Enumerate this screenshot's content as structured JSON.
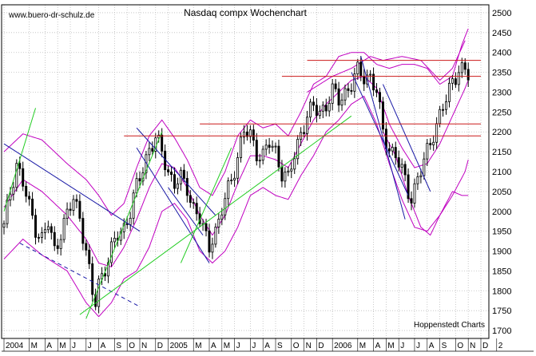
{
  "chart_data": {
    "type": "candlestick",
    "title": "Nasdaq compx Wochenchart",
    "watermark": "www.buero-dr-schulz.de",
    "source": "Hoppenstedt Charts",
    "grid": true,
    "y_axis": {
      "position": "right",
      "ylim": [
        1680,
        2520
      ],
      "ticks": [
        1700,
        1750,
        1800,
        1850,
        1900,
        1950,
        2000,
        2050,
        2100,
        2150,
        2200,
        2250,
        2300,
        2350,
        2400,
        2450,
        2500
      ]
    },
    "x_axis": {
      "weeks_visible": 151,
      "tick_labels": [
        {
          "label": "2004",
          "week": 0
        },
        {
          "label": "M",
          "week": 8
        },
        {
          "label": "A",
          "week": 13
        },
        {
          "label": "M",
          "week": 17
        },
        {
          "label": "J",
          "week": 21
        },
        {
          "label": "J",
          "week": 26
        },
        {
          "label": "A",
          "week": 30
        },
        {
          "label": "S",
          "week": 35
        },
        {
          "label": "O",
          "week": 39
        },
        {
          "label": "N",
          "week": 43
        },
        {
          "label": "D",
          "week": 48
        },
        {
          "label": "2005",
          "week": 52
        },
        {
          "label": "M",
          "week": 60
        },
        {
          "label": "A",
          "week": 65
        },
        {
          "label": "M",
          "week": 69
        },
        {
          "label": "J",
          "week": 73
        },
        {
          "label": "J",
          "week": 78
        },
        {
          "label": "A",
          "week": 82
        },
        {
          "label": "S",
          "week": 86
        },
        {
          "label": "O",
          "week": 91
        },
        {
          "label": "N",
          "week": 95
        },
        {
          "label": "D",
          "week": 99
        },
        {
          "label": "2006",
          "week": 104
        },
        {
          "label": "M",
          "week": 112
        },
        {
          "label": "A",
          "week": 117
        },
        {
          "label": "M",
          "week": 121
        },
        {
          "label": "J",
          "week": 125
        },
        {
          "label": "J",
          "week": 130
        },
        {
          "label": "A",
          "week": 134
        },
        {
          "label": "S",
          "week": 138
        },
        {
          "label": "O",
          "week": 143
        },
        {
          "label": "N",
          "week": 147
        },
        {
          "label": "D",
          "week": 151
        },
        {
          "label": "2",
          "week": 156
        }
      ]
    },
    "close_anchors": [
      [
        0,
        1960
      ],
      [
        2,
        2050
      ],
      [
        4,
        2120
      ],
      [
        6,
        2070
      ],
      [
        8,
        2010
      ],
      [
        10,
        1960
      ],
      [
        12,
        1930
      ],
      [
        14,
        1970
      ],
      [
        16,
        1900
      ],
      [
        18,
        1950
      ],
      [
        20,
        1990
      ],
      [
        22,
        2030
      ],
      [
        24,
        1990
      ],
      [
        26,
        1900
      ],
      [
        28,
        1790
      ],
      [
        29,
        1770
      ],
      [
        30,
        1820
      ],
      [
        32,
        1860
      ],
      [
        34,
        1900
      ],
      [
        36,
        1940
      ],
      [
        38,
        1960
      ],
      [
        40,
        2000
      ],
      [
        42,
        2060
      ],
      [
        44,
        2110
      ],
      [
        46,
        2160
      ],
      [
        48,
        2180
      ],
      [
        50,
        2150
      ],
      [
        52,
        2100
      ],
      [
        54,
        2070
      ],
      [
        56,
        2080
      ],
      [
        58,
        2060
      ],
      [
        60,
        2010
      ],
      [
        62,
        1980
      ],
      [
        64,
        1930
      ],
      [
        65,
        1910
      ],
      [
        66,
        1940
      ],
      [
        68,
        1970
      ],
      [
        70,
        2030
      ],
      [
        72,
        2080
      ],
      [
        74,
        2140
      ],
      [
        76,
        2200
      ],
      [
        78,
        2190
      ],
      [
        80,
        2150
      ],
      [
        82,
        2140
      ],
      [
        84,
        2170
      ],
      [
        86,
        2150
      ],
      [
        88,
        2100
      ],
      [
        90,
        2080
      ],
      [
        92,
        2140
      ],
      [
        94,
        2200
      ],
      [
        96,
        2240
      ],
      [
        98,
        2260
      ],
      [
        100,
        2250
      ],
      [
        102,
        2270
      ],
      [
        104,
        2300
      ],
      [
        106,
        2280
      ],
      [
        108,
        2300
      ],
      [
        110,
        2320
      ],
      [
        112,
        2350
      ],
      [
        114,
        2340
      ],
      [
        116,
        2340
      ],
      [
        118,
        2300
      ],
      [
        120,
        2200
      ],
      [
        122,
        2160
      ],
      [
        124,
        2140
      ],
      [
        126,
        2100
      ],
      [
        128,
        2050
      ],
      [
        129,
        2040
      ],
      [
        130,
        2060
      ],
      [
        132,
        2100
      ],
      [
        134,
        2150
      ],
      [
        136,
        2200
      ],
      [
        138,
        2240
      ],
      [
        140,
        2280
      ],
      [
        142,
        2330
      ],
      [
        144,
        2360
      ],
      [
        146,
        2350
      ],
      [
        147,
        2340
      ]
    ],
    "bollinger": {
      "upper": [
        [
          0,
          2150
        ],
        [
          6,
          2195
        ],
        [
          12,
          2180
        ],
        [
          20,
          2120
        ],
        [
          26,
          2080
        ],
        [
          30,
          2040
        ],
        [
          34,
          1990
        ],
        [
          38,
          2020
        ],
        [
          42,
          2110
        ],
        [
          46,
          2190
        ],
        [
          50,
          2230
        ],
        [
          54,
          2185
        ],
        [
          58,
          2130
        ],
        [
          62,
          2060
        ],
        [
          66,
          2040
        ],
        [
          70,
          2100
        ],
        [
          74,
          2190
        ],
        [
          78,
          2230
        ],
        [
          82,
          2210
        ],
        [
          86,
          2220
        ],
        [
          90,
          2190
        ],
        [
          94,
          2250
        ],
        [
          98,
          2320
        ],
        [
          102,
          2340
        ],
        [
          106,
          2390
        ],
        [
          110,
          2400
        ],
        [
          114,
          2400
        ],
        [
          118,
          2370
        ],
        [
          122,
          2360
        ],
        [
          126,
          2370
        ],
        [
          130,
          2370
        ],
        [
          134,
          2360
        ],
        [
          138,
          2320
        ],
        [
          142,
          2340
        ],
        [
          145,
          2420
        ],
        [
          147,
          2460
        ]
      ],
      "lower": [
        [
          0,
          1880
        ],
        [
          6,
          1930
        ],
        [
          12,
          1890
        ],
        [
          20,
          1850
        ],
        [
          26,
          1770
        ],
        [
          30,
          1735
        ],
        [
          34,
          1770
        ],
        [
          38,
          1830
        ],
        [
          42,
          1850
        ],
        [
          46,
          1910
        ],
        [
          50,
          2000
        ],
        [
          54,
          2020
        ],
        [
          58,
          1980
        ],
        [
          62,
          1900
        ],
        [
          66,
          1870
        ],
        [
          70,
          1900
        ],
        [
          74,
          1960
        ],
        [
          78,
          2040
        ],
        [
          82,
          2060
        ],
        [
          86,
          2040
        ],
        [
          90,
          2030
        ],
        [
          94,
          2090
        ],
        [
          98,
          2140
        ],
        [
          102,
          2200
        ],
        [
          106,
          2230
        ],
        [
          110,
          2270
        ],
        [
          114,
          2290
        ],
        [
          118,
          2220
        ],
        [
          122,
          2120
        ],
        [
          126,
          2030
        ],
        [
          130,
          1960
        ],
        [
          134,
          1950
        ],
        [
          138,
          1990
        ],
        [
          142,
          2040
        ],
        [
          146,
          2100
        ],
        [
          147,
          2130
        ]
      ],
      "middle": [
        [
          0,
          2010
        ],
        [
          6,
          2080
        ],
        [
          12,
          2050
        ],
        [
          20,
          1990
        ],
        [
          26,
          1930
        ],
        [
          30,
          1870
        ],
        [
          34,
          1860
        ],
        [
          38,
          1910
        ],
        [
          42,
          1980
        ],
        [
          46,
          2060
        ],
        [
          50,
          2120
        ],
        [
          54,
          2110
        ],
        [
          58,
          2060
        ],
        [
          62,
          1990
        ],
        [
          66,
          1940
        ],
        [
          70,
          1990
        ],
        [
          74,
          2070
        ],
        [
          78,
          2140
        ],
        [
          82,
          2140
        ],
        [
          86,
          2130
        ],
        [
          90,
          2110
        ],
        [
          94,
          2170
        ],
        [
          98,
          2230
        ],
        [
          102,
          2270
        ],
        [
          106,
          2300
        ],
        [
          110,
          2330
        ],
        [
          114,
          2340
        ],
        [
          118,
          2310
        ],
        [
          122,
          2220
        ],
        [
          126,
          2160
        ],
        [
          130,
          2110
        ],
        [
          134,
          2120
        ],
        [
          138,
          2170
        ],
        [
          142,
          2240
        ],
        [
          146,
          2310
        ],
        [
          147,
          2330
        ]
      ],
      "outer_lower": [
        [
          120,
          2200
        ],
        [
          124,
          2140
        ],
        [
          128,
          2040
        ],
        [
          132,
          1960
        ],
        [
          135,
          1940
        ],
        [
          138,
          1990
        ],
        [
          142,
          2050
        ],
        [
          145,
          2040
        ],
        [
          147,
          2040
        ]
      ],
      "outer_upper": [
        [
          96,
          2300
        ],
        [
          104,
          2340
        ],
        [
          110,
          2360
        ],
        [
          116,
          2390
        ],
        [
          120,
          2380
        ],
        [
          126,
          2390
        ],
        [
          132,
          2380
        ],
        [
          138,
          2330
        ],
        [
          142,
          2360
        ],
        [
          146,
          2430
        ]
      ]
    },
    "trendlines": [
      {
        "color": "#1a1aa6",
        "style": "solid",
        "from": [
          0,
          2170
        ],
        "to": [
          43,
          1950
        ]
      },
      {
        "color": "#1a1aa6",
        "style": "dashed",
        "from": [
          5,
          1920
        ],
        "to": [
          43,
          1760
        ]
      },
      {
        "color": "#1a1aa6",
        "style": "solid",
        "from": [
          42,
          2210
        ],
        "to": [
          67,
          1990
        ]
      },
      {
        "color": "#1a1aa6",
        "style": "solid",
        "from": [
          42,
          2160
        ],
        "to": [
          65,
          1870
        ]
      },
      {
        "color": "#1a1aa6",
        "style": "solid",
        "from": [
          52,
          2060
        ],
        "to": [
          63,
          1940
        ]
      },
      {
        "color": "#1a1aa6",
        "style": "solid",
        "from": [
          113,
          2390
        ],
        "to": [
          127,
          1980
        ]
      },
      {
        "color": "#1a1aa6",
        "style": "solid",
        "from": [
          110,
          2350
        ],
        "to": [
          128,
          2040
        ]
      },
      {
        "color": "#1a1aa6",
        "style": "solid",
        "from": [
          120,
          2320
        ],
        "to": [
          135,
          2050
        ]
      },
      {
        "color": "#22cc22",
        "style": "solid",
        "from": [
          0,
          2000
        ],
        "to": [
          10,
          2260
        ]
      },
      {
        "color": "#22cc22",
        "style": "solid",
        "from": [
          26,
          1730
        ],
        "to": [
          50,
          2200
        ]
      },
      {
        "color": "#22cc22",
        "style": "solid",
        "from": [
          56,
          1870
        ],
        "to": [
          72,
          2160
        ]
      },
      {
        "color": "#22cc22",
        "style": "solid",
        "from": [
          24,
          1740
        ],
        "to": [
          110,
          2240
        ]
      }
    ],
    "resistance_lines": [
      {
        "color": "#cc1a1a",
        "from": [
          38,
          2190
        ],
        "to": [
          151,
          2190
        ]
      },
      {
        "color": "#cc1a1a",
        "from": [
          62,
          2220
        ],
        "to": [
          151,
          2220
        ]
      },
      {
        "color": "#cc1a1a",
        "from": [
          88,
          2340
        ],
        "to": [
          151,
          2340
        ]
      },
      {
        "color": "#cc1a1a",
        "from": [
          96,
          2380
        ],
        "to": [
          151,
          2380
        ]
      }
    ],
    "colors": {
      "candle": "#000000",
      "bollinger": "#c000c0",
      "trend_blue": "#1a1aa6",
      "trend_green": "#22cc22",
      "resistance": "#cc1a1a",
      "grid": "#bdbdbd"
    }
  }
}
